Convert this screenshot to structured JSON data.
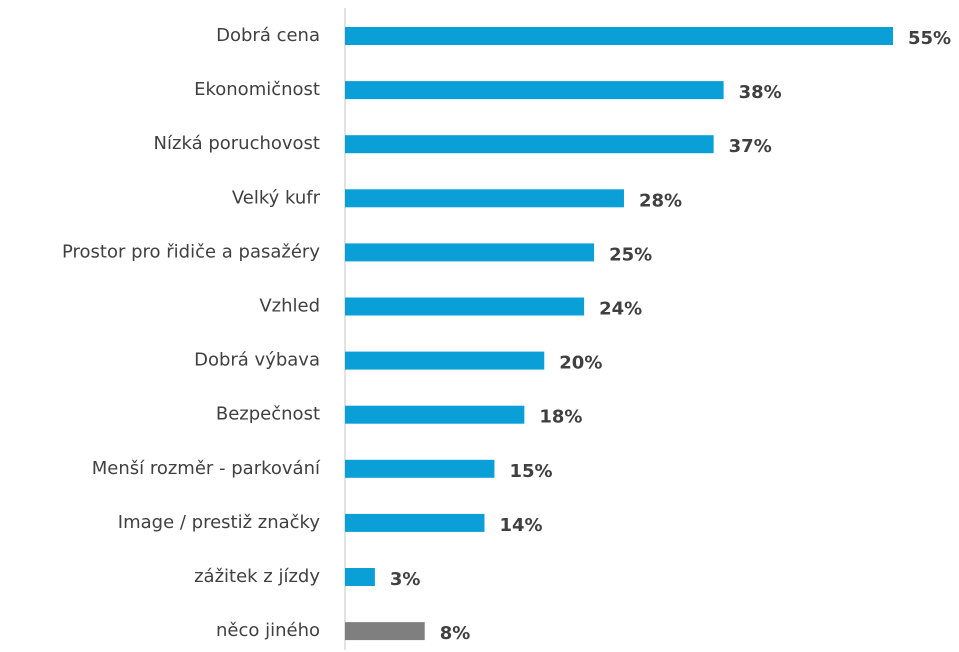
{
  "chart_data": {
    "type": "barh",
    "categories": [
      "Dobrá cena",
      "Ekonomičnost",
      "Nízká poruchovost",
      "Velký kufr",
      "Prostor pro řidiče a pasažéry",
      "Vzhled",
      "Dobrá výbava",
      "Bezpečnost",
      "Menší rozměr - parkování",
      "Image / prestiž značky",
      "zážitek z jízdy",
      "něco jiného"
    ],
    "values": [
      55,
      38,
      37,
      28,
      25,
      24,
      20,
      18,
      15,
      14,
      3,
      8
    ],
    "value_labels": [
      "55%",
      "38%",
      "37%",
      "28%",
      "25%",
      "24%",
      "20%",
      "18%",
      "15%",
      "14%",
      "3%",
      "8%"
    ],
    "colors": [
      "#0a9fd6",
      "#0a9fd6",
      "#0a9fd6",
      "#0a9fd6",
      "#0a9fd6",
      "#0a9fd6",
      "#0a9fd6",
      "#0a9fd6",
      "#0a9fd6",
      "#0a9fd6",
      "#0a9fd6",
      "#7f7f7f"
    ],
    "xlim": [
      0,
      55
    ]
  }
}
